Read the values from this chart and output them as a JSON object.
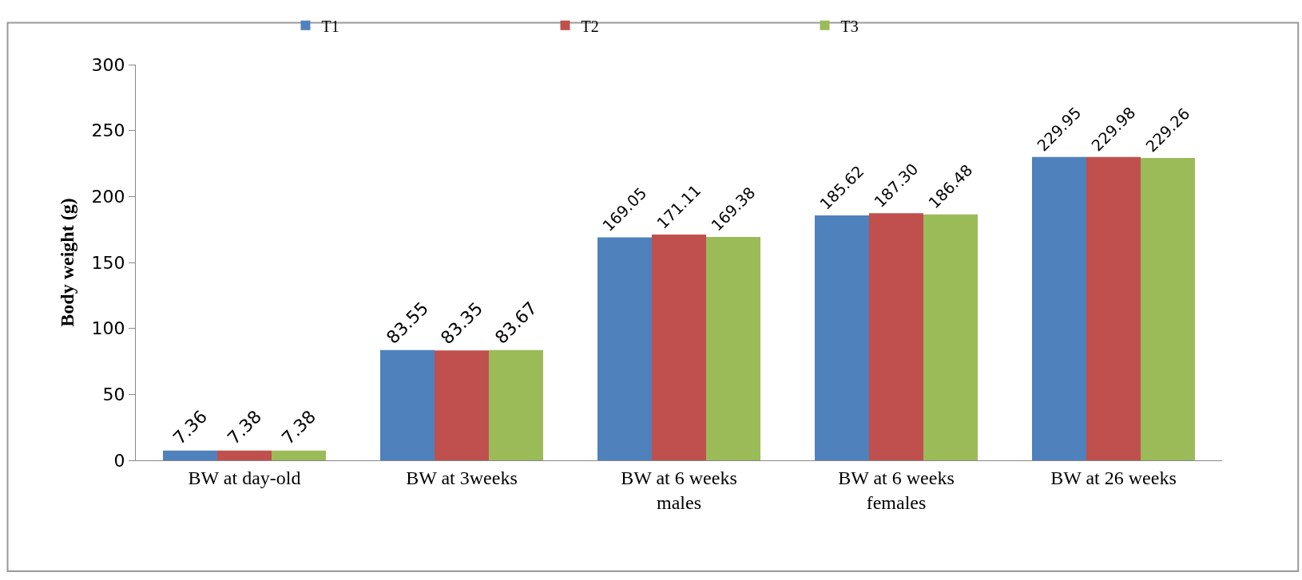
{
  "chart_data": {
    "type": "bar",
    "ylabel": "Body weight (g)",
    "categories": [
      "BW at day-old",
      "BW at 3weeks",
      "BW at 6 weeks males",
      "BW at 6 weeks females",
      "BW at 26 weeks"
    ],
    "series": [
      {
        "name": "T1",
        "color": "#4f81bd",
        "values": [
          7.36,
          83.55,
          169.05,
          185.62,
          229.95
        ],
        "value_labels": [
          "7.36",
          "83.55",
          "169.05",
          "185.62",
          "229.95"
        ]
      },
      {
        "name": "T2",
        "color": "#c0504d",
        "values": [
          7.38,
          83.35,
          171.11,
          187.3,
          229.98
        ],
        "value_labels": [
          "7.38",
          "83.35",
          "171.11",
          "187.30",
          "229.98"
        ]
      },
      {
        "name": "T3",
        "color": "#9bbb59",
        "values": [
          7.38,
          83.67,
          169.38,
          186.48,
          229.26
        ],
        "value_labels": [
          "7.38",
          "83.67",
          "169.38",
          "186.48",
          "229.26"
        ]
      }
    ],
    "ylim": [
      0,
      300
    ],
    "yticks": [
      0,
      50,
      100,
      150,
      200,
      250,
      300
    ],
    "legend": "top"
  }
}
